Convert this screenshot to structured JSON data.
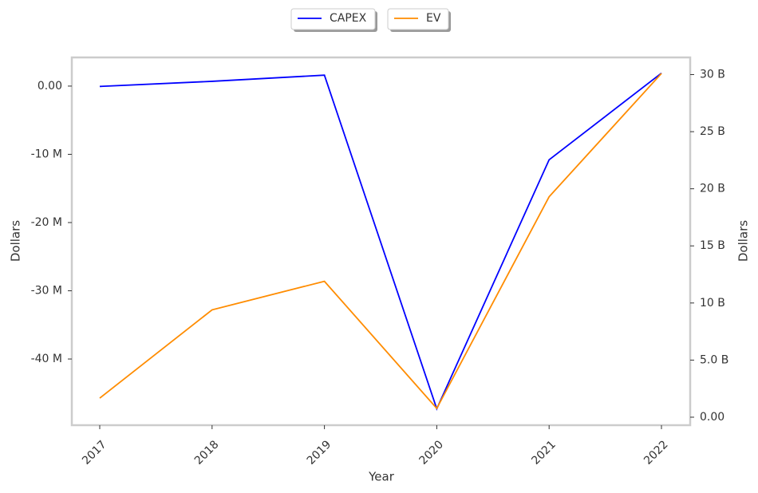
{
  "chart_data": {
    "type": "line",
    "x_label": "Year",
    "y_label": "Dollars",
    "y2_label": "Dollars",
    "categories": [
      "2017",
      "2018",
      "2019",
      "2020",
      "2021",
      "2022"
    ],
    "series": [
      {
        "name": "CAPEX",
        "color": "#0000ff",
        "values": [
          -50000,
          700000,
          1600000,
          -47300000,
          -10800000,
          1900000
        ]
      },
      {
        "name": "EV",
        "color": "#ff8c00",
        "axis": "y2",
        "values": [
          1670000000,
          9400000000,
          11900000000,
          770000000,
          19300000000,
          30100000000
        ]
      }
    ],
    "ylim": [
      -49700000,
      4200000
    ],
    "yticks": [
      {
        "value": 0,
        "label": "0.00"
      },
      {
        "value": -10000000,
        "label": "-10 M"
      },
      {
        "value": -20000000,
        "label": "-20 M"
      },
      {
        "value": -30000000,
        "label": "-30 M"
      },
      {
        "value": -40000000,
        "label": "-40 M"
      }
    ],
    "y2lim": [
      -700000000,
      31500000000
    ],
    "y2ticks": [
      {
        "value": 0,
        "label": "0.00"
      },
      {
        "value": 5000000000,
        "label": "5.0 B"
      },
      {
        "value": 10000000000,
        "label": "10 B"
      },
      {
        "value": 15000000000,
        "label": "15 B"
      },
      {
        "value": 20000000000,
        "label": "20 B"
      },
      {
        "value": 25000000000,
        "label": "25 B"
      },
      {
        "value": 30000000000,
        "label": "30 B"
      }
    ],
    "grid": false,
    "legend": "top"
  }
}
